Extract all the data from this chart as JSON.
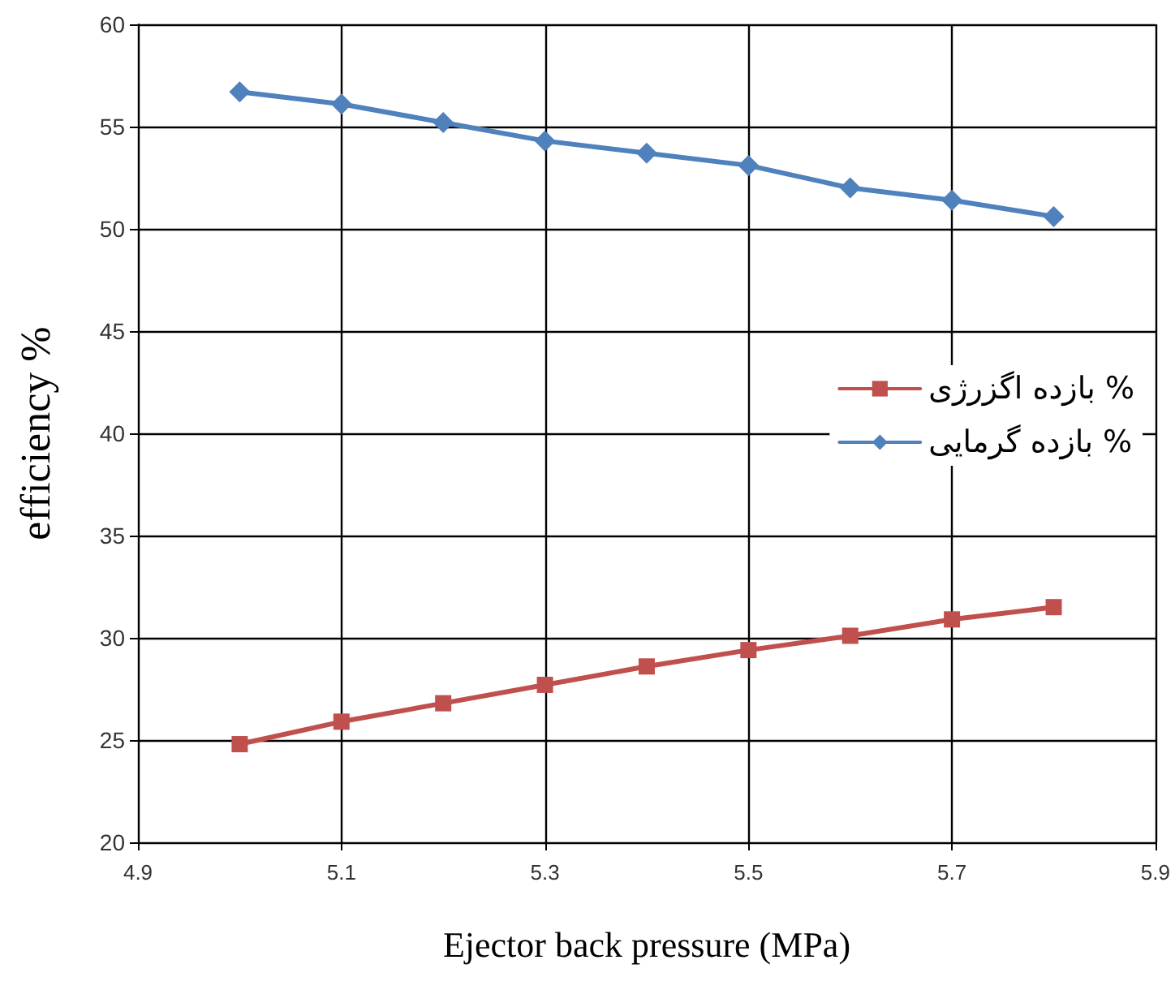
{
  "chart_data": {
    "type": "line",
    "xlabel": "Ejector back pressure (MPa)",
    "ylabel": "efficiency %",
    "x": [
      5.0,
      5.1,
      5.2,
      5.3,
      5.4,
      5.5,
      5.6,
      5.7,
      5.8
    ],
    "series": [
      {
        "name": "بازده اگزرژی %",
        "color": "#c0504d",
        "marker": "square",
        "values": [
          24.8,
          25.9,
          26.8,
          27.7,
          28.6,
          29.4,
          30.1,
          30.9,
          31.5
        ]
      },
      {
        "name": "بازده گرمایی %",
        "color": "#4f81bd",
        "marker": "diamond",
        "values": [
          56.7,
          56.1,
          55.2,
          54.3,
          53.7,
          53.1,
          52.0,
          51.4,
          50.6
        ]
      }
    ],
    "xlim": [
      4.9,
      5.9
    ],
    "xticks": [
      4.9,
      5.1,
      5.3,
      5.5,
      5.7,
      5.9
    ],
    "ylim": [
      20,
      60
    ],
    "yticks": [
      20,
      25,
      30,
      35,
      40,
      45,
      50,
      55,
      60
    ],
    "grid": true,
    "legend": "right",
    "line_style": "solid"
  }
}
